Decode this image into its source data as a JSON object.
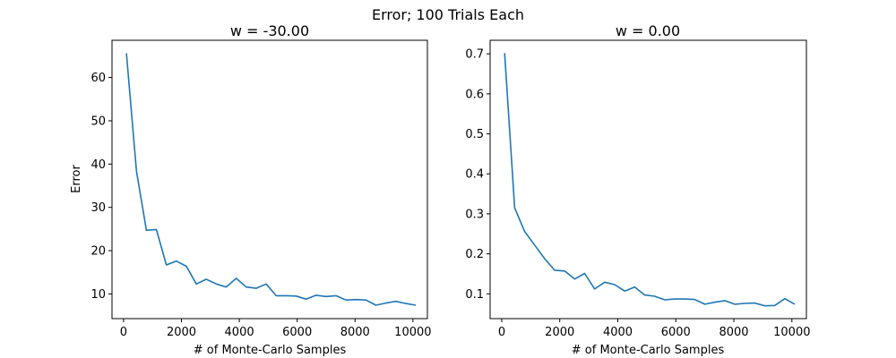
{
  "figure": {
    "suptitle": "Error; 100 Trials Each"
  },
  "colors": {
    "line": "#1f77b4",
    "axes": "#000000",
    "background": "#ffffff"
  },
  "chart_data": [
    {
      "type": "line",
      "title": "w = -30.00",
      "xlabel": "# of Monte-Carlo Samples",
      "ylabel": "Error",
      "xlim": [
        -400,
        10500
      ],
      "ylim": [
        4.3,
        68.6
      ],
      "xticks": [
        0,
        2000,
        4000,
        6000,
        8000,
        10000
      ],
      "yticks": [
        10,
        20,
        30,
        40,
        50,
        60
      ],
      "xtick_labels": [
        "0",
        "2000",
        "4000",
        "6000",
        "8000",
        "10000"
      ],
      "ytick_labels": [
        "10",
        "20",
        "30",
        "40",
        "50",
        "60"
      ],
      "grid": false,
      "series": [
        {
          "x": [
            100,
            445,
            790,
            1134,
            1479,
            1824,
            2169,
            2514,
            2859,
            3203,
            3548,
            3893,
            4238,
            4583,
            4928,
            5272,
            5617,
            5962,
            6307,
            6652,
            6997,
            7341,
            7686,
            8031,
            8376,
            8721,
            9066,
            9410,
            9755,
            10100
          ],
          "y": [
            65.6,
            38.4,
            24.7,
            24.9,
            16.7,
            17.6,
            16.4,
            12.3,
            13.4,
            12.3,
            11.6,
            13.6,
            11.6,
            11.3,
            12.3,
            9.6,
            9.6,
            9.5,
            8.8,
            9.7,
            9.4,
            9.6,
            8.6,
            8.7,
            8.6,
            7.4,
            7.9,
            8.3,
            7.8,
            7.4
          ]
        }
      ]
    },
    {
      "type": "line",
      "title": "w = 0.00",
      "xlabel": "# of Monte-Carlo Samples",
      "ylabel": "",
      "xlim": [
        -400,
        10500
      ],
      "ylim": [
        0.038,
        0.734
      ],
      "xticks": [
        0,
        2000,
        4000,
        6000,
        8000,
        10000
      ],
      "yticks": [
        0.1,
        0.2,
        0.3,
        0.4,
        0.5,
        0.6,
        0.7
      ],
      "xtick_labels": [
        "0",
        "2000",
        "4000",
        "6000",
        "8000",
        "10000"
      ],
      "ytick_labels": [
        "0.1",
        "0.2",
        "0.3",
        "0.4",
        "0.5",
        "0.6",
        "0.7"
      ],
      "grid": false,
      "series": [
        {
          "x": [
            100,
            445,
            790,
            1134,
            1479,
            1824,
            2169,
            2514,
            2859,
            3203,
            3548,
            3893,
            4238,
            4583,
            4928,
            5272,
            5617,
            5962,
            6307,
            6652,
            6997,
            7341,
            7686,
            8031,
            8376,
            8721,
            9066,
            9410,
            9755,
            10100
          ],
          "y": [
            0.702,
            0.315,
            0.256,
            0.222,
            0.188,
            0.159,
            0.157,
            0.137,
            0.151,
            0.112,
            0.129,
            0.123,
            0.107,
            0.117,
            0.097,
            0.094,
            0.085,
            0.087,
            0.087,
            0.086,
            0.074,
            0.079,
            0.083,
            0.074,
            0.076,
            0.077,
            0.07,
            0.071,
            0.088,
            0.074
          ]
        }
      ]
    }
  ]
}
